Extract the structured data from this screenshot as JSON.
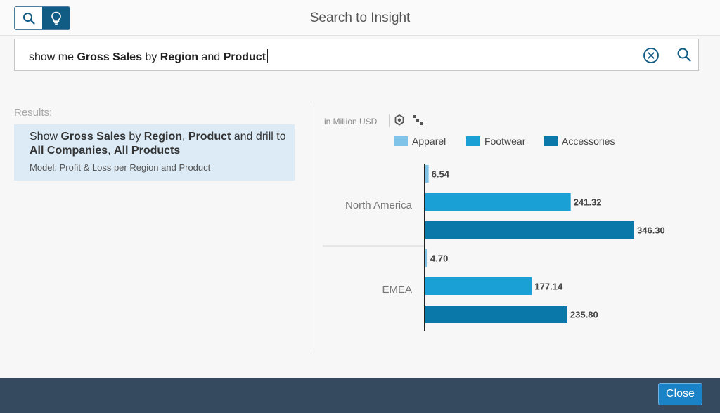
{
  "dialog": {
    "title": "Search to Insight"
  },
  "modes": {
    "search_icon": "search-icon",
    "insight_icon": "lightbulb-icon",
    "active": "insight"
  },
  "search": {
    "query_parts": [
      {
        "text": "show me ",
        "bold": false
      },
      {
        "text": "Gross Sales",
        "bold": true
      },
      {
        "text": " by ",
        "bold": false
      },
      {
        "text": "Region",
        "bold": true
      },
      {
        "text": " and ",
        "bold": false
      },
      {
        "text": "Product",
        "bold": true
      }
    ],
    "clear_icon": "clear-circle-icon",
    "submit_icon": "search-icon"
  },
  "results": {
    "label": "Results:",
    "items": [
      {
        "parts": [
          {
            "text": "Show ",
            "bold": false
          },
          {
            "text": "Gross Sales",
            "bold": true
          },
          {
            "text": " by ",
            "bold": false
          },
          {
            "text": "Region",
            "bold": true
          },
          {
            "text": ", ",
            "bold": false
          },
          {
            "text": "Product",
            "bold": true
          },
          {
            "text": " and drill to ",
            "bold": false
          },
          {
            "text": "All Companies",
            "bold": true
          },
          {
            "text": ", ",
            "bold": false
          },
          {
            "text": "All Products",
            "bold": true
          }
        ],
        "model": "Model: Profit & Loss per Region and Product"
      }
    ]
  },
  "chart_toolbar": {
    "unit": "in Million USD",
    "icons": [
      "settings-icon",
      "hierarchy-icon"
    ]
  },
  "chart_data": {
    "type": "bar",
    "orientation": "horizontal",
    "categories": [
      "North America",
      "EMEA"
    ],
    "series": [
      {
        "name": "Apparel",
        "color": "#7fc3e8",
        "values": [
          6.54,
          4.7
        ]
      },
      {
        "name": "Footwear",
        "color": "#1ba0d6",
        "values": [
          241.32,
          177.14
        ]
      },
      {
        "name": "Accessories",
        "color": "#0a78a8",
        "values": [
          346.3,
          235.8
        ]
      }
    ],
    "value_labels": [
      [
        "6.54",
        "241.32",
        "346.30"
      ],
      [
        "4.70",
        "177.14",
        "235.80"
      ]
    ],
    "xlim": [
      0,
      346.3
    ],
    "legend": "top"
  },
  "footer": {
    "close_label": "Close"
  }
}
